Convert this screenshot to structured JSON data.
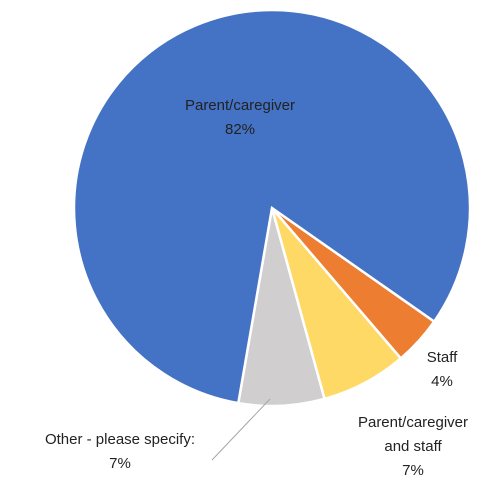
{
  "chart_data": {
    "type": "pie",
    "categories": [
      "Parent/caregiver",
      "Staff",
      "Parent/caregiver and staff",
      "Other - please specify:"
    ],
    "values": [
      82,
      4,
      7,
      7
    ],
    "value_labels": [
      "82%",
      "4%",
      "7%",
      "7%"
    ],
    "colors": [
      "#4472c4",
      "#ed7d31",
      "#ffd966",
      "#d0cece"
    ]
  }
}
